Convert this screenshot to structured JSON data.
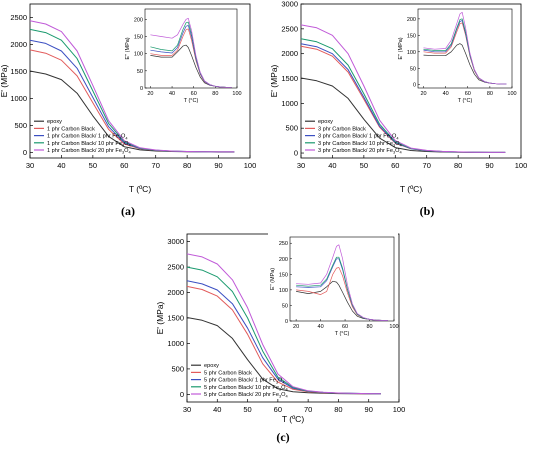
{
  "chart_data": [
    {
      "type": "line",
      "panel_label": "(a)",
      "xlabel": "T (ºC)",
      "ylabel": "E' (MPa)",
      "xlim": [
        30,
        100
      ],
      "ylim": [
        -100,
        2750
      ],
      "xticks": [
        30,
        40,
        50,
        60,
        70,
        80,
        90,
        100
      ],
      "yticks": [
        0,
        500,
        1000,
        1500,
        2000,
        2500
      ],
      "x": [
        30,
        35,
        40,
        45,
        50,
        55,
        60,
        65,
        70,
        75,
        80,
        85,
        90,
        95
      ],
      "legend_position": "bottom-left",
      "series": [
        {
          "name": "epoxy",
          "color": "#333333",
          "values": [
            1510,
            1455,
            1350,
            1100,
            680,
            300,
            110,
            50,
            30,
            20,
            15,
            12,
            10,
            10
          ]
        },
        {
          "name": "1 phr Carbon Black",
          "color": "#e25b5b",
          "values": [
            1900,
            1840,
            1710,
            1420,
            920,
            430,
            160,
            70,
            40,
            25,
            18,
            14,
            12,
            12
          ]
        },
        {
          "name": "1 phr Carbon Black/ 1 phr Fe",
          "name_sub": "3",
          "name_mid": "O",
          "name_sub2": "4",
          "color": "#3b4fc2",
          "values": [
            2080,
            2020,
            1880,
            1560,
            1020,
            480,
            180,
            75,
            42,
            27,
            19,
            14,
            12,
            12
          ]
        },
        {
          "name": "1 phr Carbon Black/ 10 phr Fe",
          "name_sub": "3",
          "name_mid": "O",
          "name_sub2": "4",
          "color": "#1a9a6e",
          "values": [
            2280,
            2220,
            2080,
            1740,
            1140,
            540,
            200,
            82,
            45,
            28,
            20,
            15,
            13,
            12
          ]
        },
        {
          "name": "1 phr Carbon Black/ 20 phr Fe",
          "name_sub": "3",
          "name_mid": "O",
          "name_sub2": "4",
          "color": "#c05ad8",
          "values": [
            2440,
            2380,
            2240,
            1880,
            1240,
            590,
            220,
            88,
            48,
            30,
            21,
            16,
            13,
            13
          ]
        }
      ],
      "inset": {
        "xlabel": "T (°C)",
        "ylabel": "E'' (MPa)",
        "xlim": [
          15,
          100
        ],
        "ylim": [
          0,
          230
        ],
        "xticks": [
          20,
          40,
          60,
          80,
          100
        ],
        "yticks": [
          0,
          50,
          100,
          150,
          200
        ],
        "x": [
          20,
          30,
          40,
          45,
          50,
          53,
          55,
          58,
          62,
          66,
          70,
          75,
          80,
          85,
          90,
          95
        ],
        "series": [
          {
            "color": "#333333",
            "values": [
              95,
              90,
              90,
              105,
              122,
              125,
              118,
              95,
              60,
              32,
              15,
              8,
              5,
              3,
              2,
              2
            ]
          },
          {
            "color": "#e25b5b",
            "values": [
              100,
              95,
              95,
              110,
              150,
              170,
              172,
              140,
              80,
              40,
              18,
              9,
              5,
              3,
              2,
              2
            ]
          },
          {
            "color": "#3b4fc2",
            "values": [
              110,
              105,
              102,
              118,
              160,
              180,
              182,
              150,
              85,
              42,
              19,
              9,
              5,
              3,
              2,
              2
            ]
          },
          {
            "color": "#1a9a6e",
            "values": [
              120,
              112,
              108,
              125,
              170,
              190,
              192,
              158,
              90,
              44,
              20,
              10,
              5,
              3,
              2,
              2
            ]
          },
          {
            "color": "#c05ad8",
            "values": [
              155,
              150,
              145,
              155,
              185,
              200,
              203,
              168,
              95,
              46,
              21,
              10,
              5,
              3,
              2,
              2
            ]
          }
        ]
      }
    },
    {
      "type": "line",
      "panel_label": "(b)",
      "xlabel": "T (ºC)",
      "ylabel": "E' (MPa)",
      "xlim": [
        30,
        100
      ],
      "ylim": [
        -100,
        3000
      ],
      "xticks": [
        30,
        40,
        50,
        60,
        70,
        80,
        90,
        100
      ],
      "yticks": [
        0,
        500,
        1000,
        1500,
        2000,
        2500,
        3000
      ],
      "x": [
        30,
        35,
        40,
        45,
        50,
        55,
        60,
        65,
        70,
        75,
        80,
        85,
        90,
        95
      ],
      "legend_position": "bottom-left",
      "series": [
        {
          "name": "epoxy",
          "color": "#333333",
          "values": [
            1510,
            1455,
            1350,
            1100,
            680,
            300,
            110,
            50,
            30,
            20,
            15,
            12,
            10,
            10
          ]
        },
        {
          "name": "3 phr Carbon Black",
          "color": "#e25b5b",
          "values": [
            2150,
            2090,
            1950,
            1630,
            1080,
            520,
            200,
            85,
            45,
            28,
            20,
            15,
            13,
            12
          ]
        },
        {
          "name": "3 phr Carbon Black/ 1 phr Fe",
          "name_sub": "3",
          "name_mid": "O",
          "name_sub2": "4",
          "color": "#3b4fc2",
          "values": [
            2200,
            2140,
            2000,
            1680,
            1120,
            540,
            210,
            88,
            46,
            29,
            20,
            15,
            13,
            12
          ]
        },
        {
          "name": "3 phr Carbon Black/ 10 phr Fe",
          "name_sub": "3",
          "name_mid": "O",
          "name_sub2": "4",
          "color": "#1a9a6e",
          "values": [
            2300,
            2240,
            2100,
            1770,
            1190,
            580,
            225,
            92,
            48,
            30,
            21,
            16,
            13,
            12
          ]
        },
        {
          "name": "3 phr Carbon Black/ 20 phr Fe",
          "name_sub": "3",
          "name_mid": "O",
          "name_sub2": "4",
          "color": "#c05ad8",
          "values": [
            2580,
            2520,
            2370,
            2000,
            1350,
            660,
            250,
            100,
            52,
            32,
            22,
            16,
            13,
            13
          ]
        }
      ],
      "inset": {
        "xlabel": "T (°C)",
        "ylabel": "E'' (MPa)",
        "xlim": [
          15,
          100
        ],
        "ylim": [
          -10,
          230
        ],
        "xticks": [
          20,
          40,
          60,
          80,
          100
        ],
        "yticks": [
          0,
          50,
          100,
          150,
          200
        ],
        "x": [
          20,
          30,
          40,
          45,
          50,
          53,
          55,
          58,
          62,
          66,
          70,
          75,
          80,
          85,
          90,
          95
        ],
        "series": [
          {
            "color": "#333333",
            "values": [
              90,
              88,
              88,
              100,
              120,
              125,
              120,
              95,
              60,
              32,
              15,
              8,
              5,
              3,
              2,
              2
            ]
          },
          {
            "color": "#e25b5b",
            "values": [
              100,
              96,
              96,
              115,
              160,
              185,
              188,
              150,
              85,
              42,
              19,
              9,
              5,
              3,
              2,
              2
            ]
          },
          {
            "color": "#3b4fc2",
            "values": [
              105,
              100,
              100,
              120,
              168,
              192,
              195,
              155,
              88,
              44,
              20,
              9,
              5,
              3,
              2,
              2
            ]
          },
          {
            "color": "#1a9a6e",
            "values": [
              108,
              104,
              104,
              124,
              172,
              198,
              200,
              160,
              90,
              45,
              20,
              10,
              5,
              3,
              2,
              2
            ]
          },
          {
            "color": "#c05ad8",
            "values": [
              112,
              108,
              110,
              135,
              185,
              215,
              220,
              172,
              95,
              46,
              21,
              10,
              5,
              3,
              2,
              2
            ]
          }
        ]
      }
    },
    {
      "type": "line",
      "panel_label": "(c)",
      "xlabel": "T (ºC)",
      "ylabel": "E' (MPa)",
      "xlim": [
        30,
        100
      ],
      "ylim": [
        -150,
        3150
      ],
      "xticks": [
        30,
        40,
        50,
        60,
        70,
        80,
        90,
        100
      ],
      "yticks": [
        0,
        500,
        1000,
        1500,
        2000,
        2500,
        3000
      ],
      "x": [
        30,
        35,
        40,
        45,
        50,
        55,
        60,
        65,
        70,
        75,
        80,
        85,
        90,
        94
      ],
      "legend_position": "bottom-left",
      "series": [
        {
          "name": "epoxy",
          "color": "#333333",
          "values": [
            1510,
            1455,
            1350,
            1100,
            680,
            300,
            110,
            50,
            30,
            20,
            15,
            12,
            10,
            10
          ]
        },
        {
          "name": "5 phr Carbon Black",
          "color": "#e25b5b",
          "values": [
            2120,
            2060,
            1930,
            1660,
            1180,
            600,
            240,
            100,
            50,
            32,
            22,
            16,
            13,
            12
          ]
        },
        {
          "name": "5 phr Carbon Black/ 1 phr Fe",
          "name_sub": "3",
          "name_mid": "O",
          "name_sub2": "4",
          "color": "#3b4fc2",
          "values": [
            2230,
            2170,
            2050,
            1780,
            1300,
            720,
            300,
            120,
            60,
            36,
            24,
            18,
            15,
            14
          ]
        },
        {
          "name": "5 phr Carbon Black/ 10 phr Fe",
          "name_sub": "3",
          "name_mid": "O",
          "name_sub2": "4",
          "color": "#1a9a6e",
          "values": [
            2500,
            2440,
            2310,
            2020,
            1500,
            850,
            340,
            135,
            65,
            38,
            25,
            18,
            15,
            14
          ]
        },
        {
          "name": "5 phr Carbon Black/ 20 phr Fe",
          "name_sub": "3",
          "name_mid": "O",
          "name_sub2": "4",
          "color": "#c05ad8",
          "values": [
            2760,
            2700,
            2560,
            2250,
            1700,
            980,
            400,
            150,
            70,
            40,
            26,
            19,
            15,
            14
          ]
        }
      ],
      "inset": {
        "xlabel": "T (°C)",
        "ylabel": "E'' (MPa)",
        "xlim": [
          15,
          100
        ],
        "ylim": [
          0,
          270
        ],
        "xticks": [
          20,
          40,
          60,
          80,
          100
        ],
        "yticks": [
          0,
          50,
          100,
          150,
          200,
          250
        ],
        "x": [
          20,
          30,
          40,
          45,
          50,
          53,
          55,
          58,
          62,
          66,
          70,
          75,
          80,
          85,
          90,
          95
        ],
        "series": [
          {
            "color": "#333333",
            "values": [
              95,
              88,
              95,
              110,
              128,
              125,
              115,
              92,
              60,
              32,
              15,
              8,
              5,
              3,
              2,
              2
            ]
          },
          {
            "color": "#e25b5b",
            "values": [
              100,
              95,
              85,
              95,
              150,
              170,
              172,
              145,
              90,
              45,
              20,
              10,
              5,
              3,
              2,
              2
            ]
          },
          {
            "color": "#3b4fc2",
            "values": [
              110,
              108,
              110,
              130,
              175,
              200,
              200,
              165,
              100,
              50,
              22,
              10,
              5,
              3,
              2,
              2
            ]
          },
          {
            "color": "#1a9a6e",
            "values": [
              115,
              112,
              115,
              135,
              180,
              205,
              205,
              170,
              102,
              51,
              22,
              10,
              5,
              3,
              2,
              2
            ]
          },
          {
            "color": "#c05ad8",
            "values": [
              120,
              118,
              122,
              150,
              205,
              240,
              245,
              200,
              115,
              55,
              24,
              11,
              5,
              3,
              2,
              2
            ]
          }
        ]
      }
    }
  ]
}
